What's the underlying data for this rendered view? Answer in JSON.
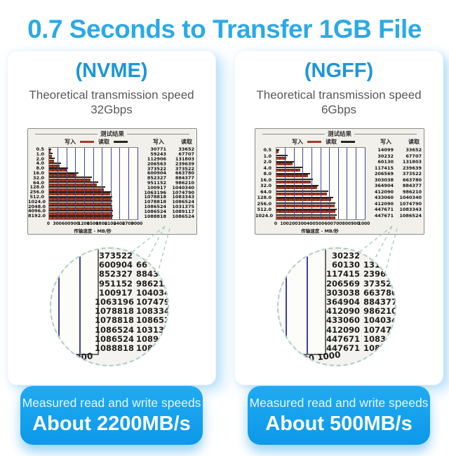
{
  "page": {
    "title": "0.7 Seconds to Transfer 1GB File"
  },
  "colors": {
    "title_blue": "#2BA9E8",
    "header_blue": "#1E96D8",
    "banner_blue_top": "#20AAF2",
    "banner_blue_bottom": "#0C99E9",
    "bar_write_red": "#A23B27",
    "bar_read_dark": "#26261C",
    "gridline_blue": "#4343A0",
    "magnifier_dash": "#ABCCC6"
  },
  "panels": [
    {
      "name": "nvme",
      "header": "(NVME)",
      "subtitle1": "Theoretical transmission speed",
      "subtitle2": "32Gbps",
      "benchmark": {
        "window_title": "测试结果",
        "legend_write": "写入",
        "legend_read": "读取",
        "col_write": "写入",
        "col_read": "读取",
        "xlabel": "传输速度 - MB/秒"
      },
      "magnifier": {
        "rows": [
          [
            "373522",
            ""
          ],
          [
            "600904",
            "66"
          ],
          [
            "852327",
            "8843"
          ],
          [
            "951152",
            "986210"
          ],
          [
            "100917",
            "1040340"
          ],
          [
            "1063196",
            "1074790"
          ],
          [
            "1078818",
            "1083343"
          ],
          [
            "1078818",
            "1086524"
          ],
          [
            "1086524",
            "1031375"
          ],
          [
            "1086524",
            "108911"
          ],
          [
            "1088818",
            "10865"
          ]
        ],
        "axis_label": "3000"
      },
      "banner": {
        "line1": "Measured read and write speeds",
        "line2": "About 2200MB/s"
      }
    },
    {
      "name": "ngff",
      "header": "(NGFF)",
      "subtitle1": "Theoretical transmission speed",
      "subtitle2": "6Gbps",
      "benchmark": {
        "window_title": "测试结果",
        "legend_write": "写入",
        "legend_read": "读取",
        "col_write": "写入",
        "col_read": "读取",
        "xlabel": "传输速度 - MB/秒"
      },
      "magnifier": {
        "rows": [
          [
            "30232",
            ""
          ],
          [
            "60130",
            "131"
          ],
          [
            "117415",
            "23963"
          ],
          [
            "206569",
            "373522"
          ],
          [
            "303038",
            "663780"
          ],
          [
            "364904",
            "884377"
          ],
          [
            "412090",
            "986210"
          ],
          [
            "433060",
            "1040340"
          ],
          [
            "412090",
            "1074790"
          ],
          [
            "447671",
            "1083343"
          ],
          [
            "447671",
            "1086524"
          ]
        ],
        "axis_label": "900  1000"
      },
      "banner": {
        "line1": "Measured read and write speeds",
        "line2": "About 500MB/s"
      }
    }
  ],
  "chart_data": [
    {
      "type": "bar",
      "orientation": "horizontal",
      "title": "测试结果",
      "xlabel": "传输速度 - MB/秒",
      "xlim": [
        0,
        3000
      ],
      "x_ticks": [
        "0",
        "300",
        "600",
        "900",
        "1200",
        "1500",
        "1800",
        "2100",
        "2400",
        "2700",
        "3000"
      ],
      "grid": "vertical",
      "legend_position": "top",
      "categories": [
        "0.5",
        "1.0",
        "2.0",
        "4.0",
        "8.0",
        "16.0",
        "32.0",
        "64.0",
        "128.0",
        "256.0",
        "512.0",
        "1024.0",
        "2048.0",
        "4096.0",
        "8192.0"
      ],
      "series": [
        {
          "name": "写入",
          "values": [
            30771,
            59243,
            112906,
            206563,
            373522,
            600904,
            852327,
            951152,
            100917,
            1063196,
            1078818,
            1078818,
            1086524,
            1086524,
            1088818
          ]
        },
        {
          "name": "读取",
          "values": [
            33652,
            67707,
            131803,
            239639,
            373522,
            663780,
            884377,
            986210,
            1040340,
            1074790,
            1083343,
            1086524,
            1031375,
            1089117,
            1086524
          ]
        }
      ],
      "bar_lengths": {
        "write": [
          50,
          100,
          160,
          360,
          600,
          930,
          1400,
          1610,
          1850,
          2060,
          2110,
          2130,
          2140,
          2140,
          2150
        ],
        "read": [
          60,
          115,
          190,
          400,
          650,
          1010,
          1460,
          1670,
          1910,
          2100,
          2140,
          2150,
          2150,
          2160,
          2160
        ]
      }
    },
    {
      "type": "bar",
      "orientation": "horizontal",
      "title": "测试结果",
      "xlabel": "传输速度 - MB/秒",
      "xlim": [
        0,
        1000
      ],
      "x_ticks": [
        "0",
        "100",
        "200",
        "300",
        "400",
        "500",
        "600",
        "700",
        "800",
        "900",
        "1000"
      ],
      "grid": "vertical",
      "legend_position": "top",
      "categories": [
        "0.5",
        "1.0",
        "2.0",
        "4.0",
        "8.0",
        "16.0",
        "32.0",
        "64.0",
        "128.0",
        "256.0",
        "512.0",
        "1024.0"
      ],
      "series": [
        {
          "name": "写入",
          "values": [
            14099,
            30232,
            60130,
            117415,
            206569,
            303038,
            364904,
            412090,
            433060,
            412090,
            447671,
            447671
          ]
        },
        {
          "name": "读取",
          "values": [
            33652,
            67707,
            131803,
            239639,
            373522,
            663780,
            884377,
            986210,
            1040340,
            1074790,
            1083343,
            1086524
          ]
        }
      ],
      "bar_lengths": {
        "write": [
          20,
          110,
          180,
          270,
          360,
          390,
          460,
          570,
          620,
          655,
          665,
          670
        ],
        "read": [
          30,
          125,
          200,
          290,
          380,
          410,
          480,
          590,
          640,
          670,
          680,
          685
        ]
      }
    }
  ]
}
